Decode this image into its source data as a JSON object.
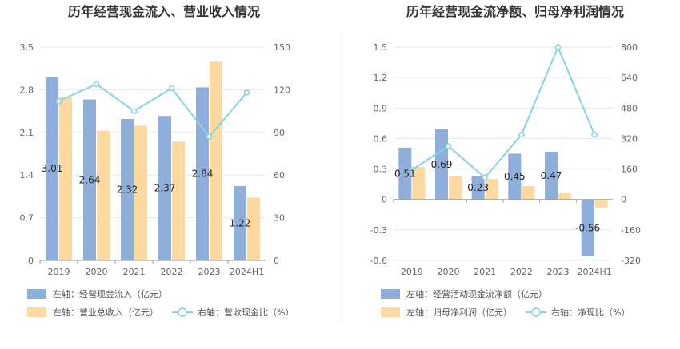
{
  "colors": {
    "bar_primary": "#8eaedc",
    "bar_secondary": "#fdd9a0",
    "line": "#86d4de",
    "grid": "#e8e8e8",
    "divider": "#eeeeee"
  },
  "chart_data": [
    {
      "type": "bar",
      "title": "历年经营现金流入、营业收入情况",
      "categories": [
        "2019",
        "2020",
        "2021",
        "2022",
        "2023",
        "2024H1"
      ],
      "series": [
        {
          "name": "左轴：经营现金流入（亿元）",
          "axis": "left",
          "kind": "bar",
          "values": [
            3.01,
            2.64,
            2.32,
            2.37,
            2.84,
            1.22
          ],
          "labels": [
            "3.01",
            "2.64",
            "2.32",
            "2.37",
            "2.84",
            "1.22"
          ]
        },
        {
          "name": "左轴：营业总收入（亿元）",
          "axis": "left",
          "kind": "bar",
          "values": [
            2.68,
            2.13,
            2.21,
            1.95,
            3.26,
            1.03
          ]
        },
        {
          "name": "右轴：营收现金比（%）",
          "axis": "right",
          "kind": "line",
          "values": [
            112,
            124,
            105,
            121,
            87,
            118
          ]
        }
      ],
      "left_axis": {
        "min": 0,
        "max": 3.5,
        "ticks": [
          "0",
          "0.7",
          "1.4",
          "2.1",
          "2.8",
          "3.5"
        ]
      },
      "right_axis": {
        "min": 0,
        "max": 150,
        "ticks": [
          "0",
          "30",
          "60",
          "90",
          "120",
          "150"
        ]
      },
      "grid": true,
      "legend_position": "bottom-left"
    },
    {
      "type": "bar",
      "title": "历年经营现金流净额、归母净利润情况",
      "categories": [
        "2019",
        "2020",
        "2021",
        "2022",
        "2023",
        "2024H1"
      ],
      "series": [
        {
          "name": "左轴：经营活动现金流净额（亿元）",
          "axis": "left",
          "kind": "bar",
          "values": [
            0.51,
            0.69,
            0.23,
            0.45,
            0.47,
            -0.56
          ],
          "labels": [
            "0.51",
            "0.69",
            "0.23",
            "0.45",
            "0.47",
            "-0.56"
          ]
        },
        {
          "name": "左轴：归母净利润（亿元）",
          "axis": "left",
          "kind": "bar",
          "values": [
            0.32,
            0.23,
            0.2,
            0.13,
            0.06,
            -0.08
          ]
        },
        {
          "name": "右轴：净现比（%）",
          "axis": "right",
          "kind": "line",
          "values": [
            155,
            280,
            115,
            340,
            800,
            340
          ]
        }
      ],
      "left_axis": {
        "min": -0.6,
        "max": 1.5,
        "ticks": [
          "-0.6",
          "-0.3",
          "0",
          "0.3",
          "0.6",
          "0.9",
          "1.2",
          "1.5"
        ]
      },
      "right_axis": {
        "min": -320,
        "max": 800,
        "ticks": [
          "-320",
          "-160",
          "0",
          "160",
          "320",
          "480",
          "640",
          "800"
        ]
      },
      "grid": true,
      "legend_position": "bottom-left"
    }
  ]
}
